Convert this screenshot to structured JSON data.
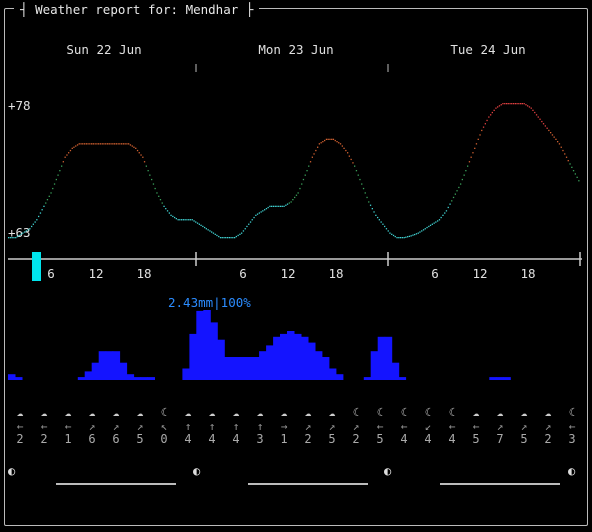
{
  "window": {
    "title": "Weather report for: Mendhar"
  },
  "days": [
    "Sun 22 Jun",
    "Mon 23 Jun",
    "Tue 24 Jun"
  ],
  "temperature": {
    "max_label": "+78",
    "min_label": "+63"
  },
  "hour_labels": [
    "6",
    "12",
    "18",
    "6",
    "12",
    "18",
    "6",
    "12",
    "18"
  ],
  "precip": {
    "label": "2.43mm|100%"
  },
  "weather_strip": {
    "icons": [
      "☁",
      "☁",
      "☁",
      "☁",
      "☁",
      "☁",
      "☾",
      "☁",
      "☁",
      "☁",
      "☁",
      "☁",
      "☁",
      "☁",
      "☾",
      "☾",
      "☾",
      "☾",
      "☾",
      "☁",
      "☁",
      "☁",
      "☁",
      "☾"
    ],
    "arrows": [
      "←",
      "←",
      "←",
      "↗",
      "↗",
      "↗",
      "↖",
      "↑",
      "↑",
      "↑",
      "↑",
      "→",
      "↗",
      "↗",
      "↗",
      "←",
      "←",
      "↙",
      "←",
      "←",
      "↗",
      "↗",
      "↗",
      "←"
    ],
    "speeds": [
      "2",
      "2",
      "1",
      "6",
      "6",
      "5",
      "0",
      "4",
      "4",
      "4",
      "3",
      "1",
      "2",
      "5",
      "2",
      "5",
      "4",
      "4",
      "4",
      "5",
      "7",
      "5",
      "2",
      "3"
    ]
  },
  "chart_data": {
    "type": "line",
    "title": "",
    "ylabel": "",
    "ylim": [
      63,
      78
    ],
    "series": [
      {
        "values": [
          63,
          63,
          63.5,
          64,
          65,
          66.5,
          68,
          70,
          72,
          73,
          73.5,
          73.5,
          73.5,
          73.5,
          73.5,
          73.5,
          73.5,
          73.5,
          73,
          72,
          70,
          68,
          66.5,
          65.5,
          65,
          65,
          65,
          64.5,
          64,
          63.5,
          63,
          63,
          63,
          63.5,
          64.5,
          65.5,
          66,
          66.5,
          66.5,
          66.5,
          67,
          68,
          70,
          72,
          73.5,
          74,
          74,
          73.5,
          72.5,
          71,
          69,
          67,
          65.5,
          64.5,
          63.5,
          63,
          63,
          63.2,
          63.5,
          64,
          64.5,
          65,
          66,
          67.5,
          69,
          71,
          73,
          75,
          76.5,
          77.5,
          78,
          78,
          78,
          78,
          77.5,
          76.5,
          75.5,
          74.5,
          73.5,
          72,
          70.5,
          69
        ]
      }
    ],
    "precip_values": [
      0.2,
      0.1,
      0,
      0,
      0,
      0,
      0,
      0,
      0,
      0,
      0.1,
      0.3,
      0.6,
      1.0,
      1.0,
      1.0,
      0.6,
      0.2,
      0.1,
      0.1,
      0.1,
      0,
      0,
      0,
      0,
      0.4,
      1.6,
      2.4,
      2.43,
      2.0,
      1.4,
      0.8,
      0.8,
      0.8,
      0.8,
      0.8,
      1.0,
      1.2,
      1.5,
      1.6,
      1.7,
      1.6,
      1.5,
      1.3,
      1.0,
      0.8,
      0.4,
      0.2,
      0,
      0,
      0,
      0.1,
      1.0,
      1.5,
      1.5,
      0.6,
      0.1,
      0,
      0,
      0,
      0,
      0,
      0,
      0,
      0,
      0,
      0,
      0,
      0,
      0.1,
      0.1,
      0.1,
      0,
      0,
      0,
      0,
      0,
      0,
      0,
      0,
      0,
      0
    ]
  }
}
